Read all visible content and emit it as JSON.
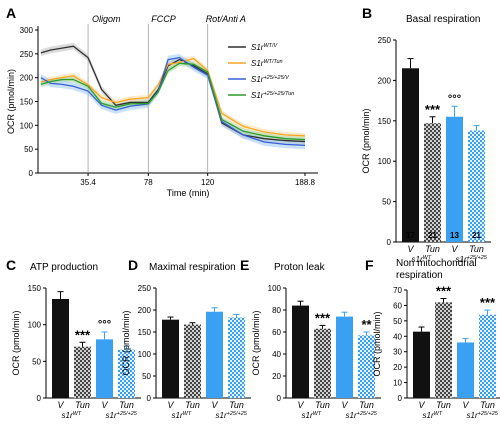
{
  "colors": {
    "black": "#111111",
    "gray_checker": "#6b6b6b",
    "blue": "#3aa0f2",
    "blue_light": "#a9d4f8",
    "orange": "#f5a623",
    "green": "#2c9c2c",
    "line_gray": "#303030",
    "line_blue": "#3760d8"
  },
  "chart_data": [
    {
      "id": "A",
      "type": "line",
      "letter": "A",
      "xlabel": "Time (min)",
      "ylabel": "OCR (pmol/min)",
      "x_ticks": [
        "35.4",
        "78",
        "120",
        "188.8"
      ],
      "y_ticks": [
        "0",
        "50",
        "100",
        "150",
        "200",
        "250",
        "300"
      ],
      "ylim": [
        0,
        300
      ],
      "annotations": [
        "Oligom",
        "FCCP",
        "Rot/Anti A"
      ],
      "legend": [
        "S1r^WT/V",
        "S1r^WT/Tun",
        "S1r^+25/+25/V",
        "S1r^+25/+25/Tun"
      ],
      "x": [
        2,
        9,
        17,
        25,
        35.4,
        45,
        55,
        65,
        78,
        85,
        92,
        100,
        110,
        120,
        130,
        145,
        160,
        175,
        188.8
      ],
      "series": [
        {
          "name": "S1r^WT/V",
          "values": [
            252,
            258,
            262,
            266,
            242,
            175,
            142,
            148,
            148,
            175,
            225,
            238,
            225,
            208,
            105,
            80,
            72,
            68,
            66
          ]
        },
        {
          "name": "S1r^WT/Tun",
          "values": [
            191,
            196,
            200,
            204,
            185,
            158,
            148,
            155,
            158,
            185,
            228,
            232,
            240,
            215,
            125,
            98,
            86,
            80,
            78
          ]
        },
        {
          "name": "S1r^+25/+25/V",
          "values": [
            200,
            188,
            186,
            182,
            172,
            142,
            132,
            140,
            145,
            172,
            238,
            242,
            222,
            205,
            108,
            80,
            65,
            60,
            58
          ]
        },
        {
          "name": "S1r^+25/+25/Tun",
          "values": [
            186,
            192,
            196,
            196,
            182,
            146,
            138,
            145,
            146,
            170,
            215,
            230,
            228,
            212,
            112,
            88,
            78,
            72,
            70
          ]
        }
      ]
    },
    {
      "id": "B",
      "type": "bar",
      "letter": "B",
      "title": "Basal respiration",
      "ylabel": "OCR (pmol/min)",
      "ylim": [
        0,
        250
      ],
      "y_ticks": [
        "0",
        "50",
        "100",
        "150",
        "200",
        "250"
      ],
      "categories": [
        "V",
        "Tun",
        "V",
        "Tun"
      ],
      "group_labels": [
        "s1r^WT",
        "s1r^+25/+25"
      ],
      "values": [
        215,
        147,
        155,
        138
      ],
      "errors": [
        12,
        8,
        13,
        6
      ],
      "marks": [
        "",
        "***",
        "°°°",
        ""
      ],
      "n_labels": [
        "17",
        "21",
        "13",
        "21"
      ]
    },
    {
      "id": "C",
      "type": "bar",
      "letter": "C",
      "title": "ATP production",
      "ylabel": "OCR (pmol/min)",
      "ylim": [
        0,
        150
      ],
      "y_ticks": [
        "0",
        "50",
        "100",
        "150"
      ],
      "categories": [
        "V",
        "Tun",
        "V",
        "Tun"
      ],
      "group_labels": [
        "s1r^WT",
        "s1r^+25/+25"
      ],
      "values": [
        135,
        70,
        80,
        66
      ],
      "errors": [
        10,
        6,
        10,
        5
      ],
      "marks": [
        "",
        "***",
        "°°°",
        ""
      ]
    },
    {
      "id": "D",
      "type": "bar",
      "letter": "D",
      "title": "Maximal respiration",
      "ylabel": "OCR (pmol/min)",
      "ylim": [
        0,
        250
      ],
      "y_ticks": [
        "0",
        "50",
        "100",
        "150",
        "200",
        "250"
      ],
      "categories": [
        "V",
        "Tun",
        "V",
        "Tun"
      ],
      "group_labels": [
        "s1r^WT",
        "s1r^+25/+25"
      ],
      "values": [
        178,
        167,
        196,
        183
      ],
      "errors": [
        6,
        4,
        9,
        7
      ],
      "marks": [
        "",
        "",
        "",
        ""
      ]
    },
    {
      "id": "E",
      "type": "bar",
      "letter": "E",
      "title": "Proton leak",
      "ylabel": "OCR (pmol/min)",
      "ylim": [
        0,
        100
      ],
      "y_ticks": [
        "0",
        "20",
        "40",
        "60",
        "80",
        "100"
      ],
      "categories": [
        "V",
        "Tun",
        "V",
        "Tun"
      ],
      "group_labels": [
        "s1r^WT",
        "s1r^+25/+25"
      ],
      "values": [
        84,
        63,
        74,
        57
      ],
      "errors": [
        4,
        3,
        4,
        3
      ],
      "marks": [
        "",
        "***",
        "",
        "**"
      ]
    },
    {
      "id": "F",
      "type": "bar",
      "letter": "F",
      "title": "Non mitochondrial respiration",
      "title_lines": [
        "Non mitochondrial",
        "respiration"
      ],
      "ylabel": "OCR (pmol/min)",
      "ylim": [
        0,
        70
      ],
      "y_ticks": [
        "0",
        "10",
        "20",
        "30",
        "40",
        "50",
        "60",
        "70"
      ],
      "categories": [
        "V",
        "Tun",
        "V",
        "Tun"
      ],
      "group_labels": [
        "s1r^WT",
        "s1r^+25/+25"
      ],
      "values": [
        43,
        62,
        36,
        54
      ],
      "errors": [
        3,
        2.5,
        2.5,
        3
      ],
      "marks": [
        "",
        "***",
        "",
        "***"
      ]
    }
  ]
}
